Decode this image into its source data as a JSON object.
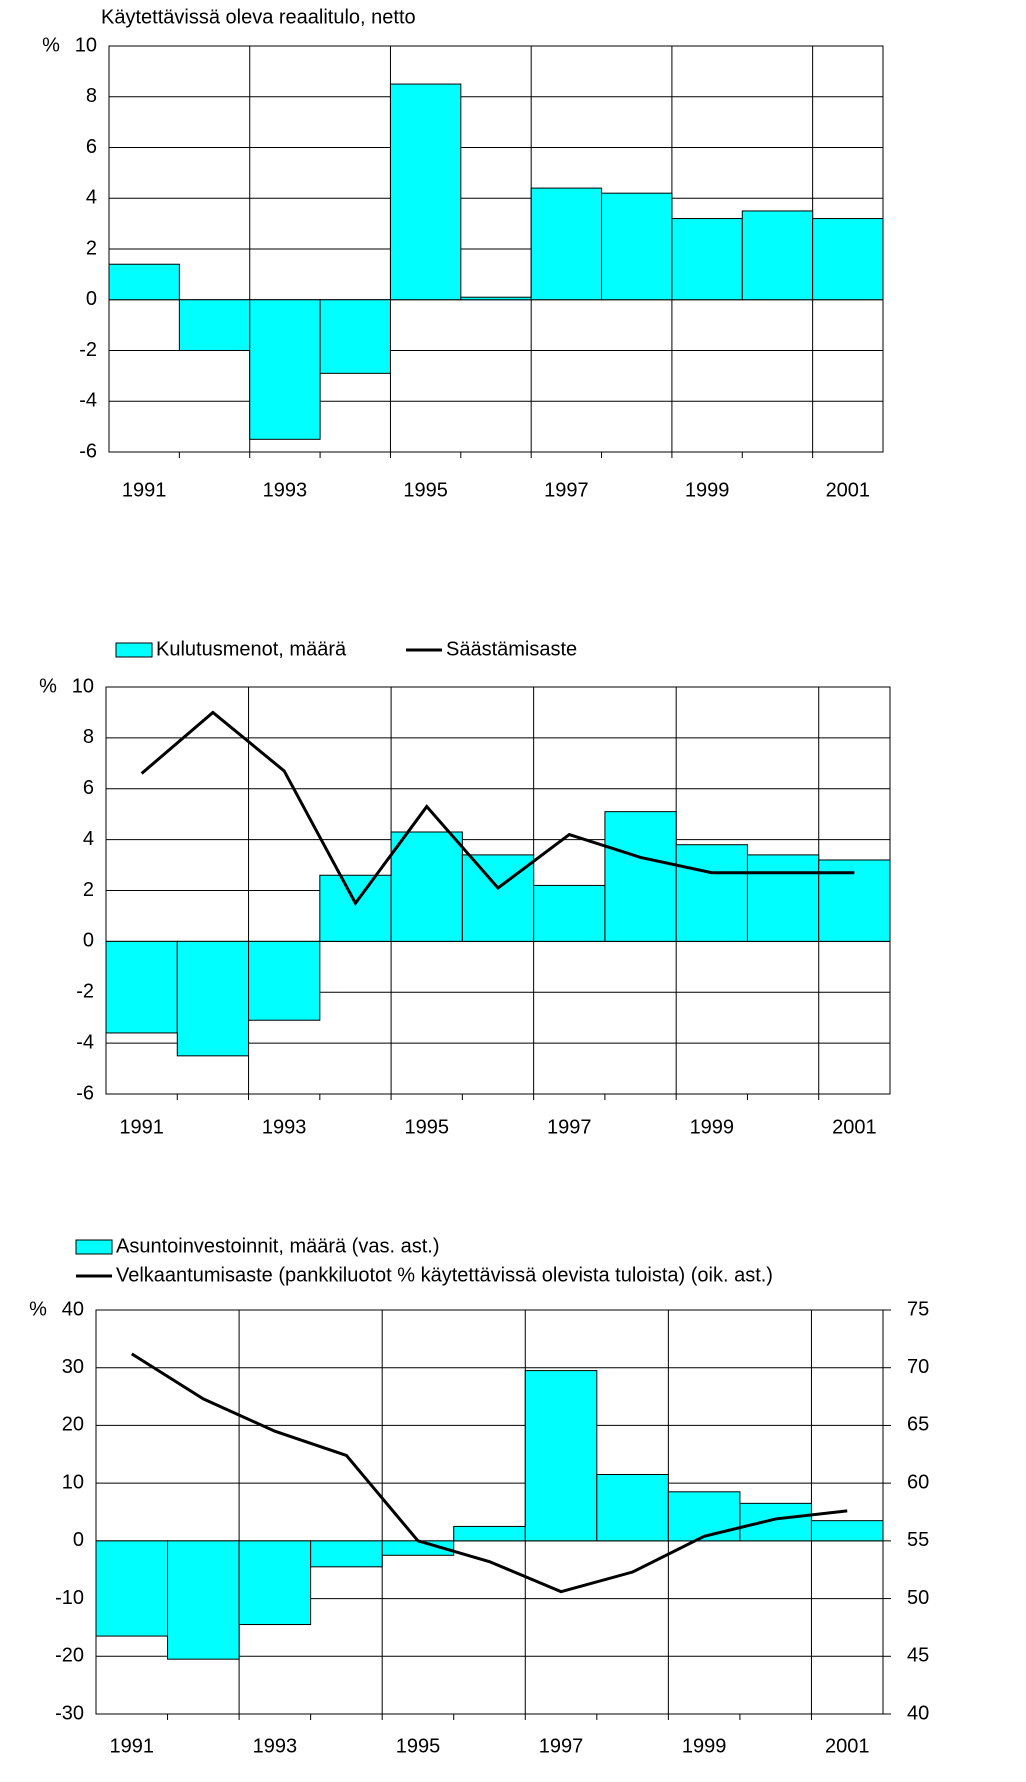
{
  "chart_data": [
    {
      "type": "bar",
      "title": "Käytettävissä oleva reaalitulo, netto",
      "unit": "%",
      "categories": [
        "1991",
        null,
        "1993",
        null,
        "1995",
        null,
        "1997",
        null,
        "1999",
        null,
        "2001"
      ],
      "values": [
        1.4,
        -2.0,
        -5.5,
        -2.9,
        8.5,
        0.1,
        4.4,
        4.2,
        3.2,
        3.5,
        3.2
      ],
      "color": "#00ffff",
      "ylim": [
        -6,
        10
      ],
      "yticks": [
        -6,
        -4,
        -2,
        0,
        2,
        4,
        6,
        8,
        10
      ],
      "grid": true
    },
    {
      "type": "bar",
      "unit": "%",
      "categories": [
        "1991",
        null,
        "1993",
        null,
        "1995",
        null,
        "1997",
        null,
        "1999",
        null,
        "2001"
      ],
      "series": [
        {
          "name": "Kulutusmenot, määrä",
          "type": "bar",
          "color": "#00ffff",
          "values": [
            -3.6,
            -4.5,
            -3.1,
            2.6,
            4.3,
            3.4,
            2.2,
            5.1,
            3.8,
            3.4,
            3.2
          ]
        },
        {
          "name": "Säästämisaste",
          "type": "line",
          "color": "#000000",
          "values": [
            6.6,
            9.0,
            6.7,
            1.5,
            5.3,
            2.1,
            4.2,
            3.3,
            2.7,
            2.7,
            2.7
          ]
        }
      ],
      "ylim": [
        -6,
        10
      ],
      "yticks": [
        -6,
        -4,
        -2,
        0,
        2,
        4,
        6,
        8,
        10
      ],
      "grid": true
    },
    {
      "type": "bar",
      "unit": "%",
      "categories": [
        "1991",
        null,
        "1993",
        null,
        "1995",
        null,
        "1997",
        null,
        "1999",
        null,
        "2001"
      ],
      "series": [
        {
          "name": "Asuntoinvestoinnit, määrä (vas. ast.)",
          "type": "bar",
          "color": "#00ffff",
          "values": [
            -16.5,
            -20.5,
            -14.5,
            -4.5,
            -2.5,
            2.5,
            29.5,
            11.5,
            8.5,
            6.5,
            3.5
          ]
        },
        {
          "name": "Velkaantumisaste (pankkiluotot % käytettävissä olevista tuloista) (oik. ast.)",
          "type": "line",
          "axis": "y2",
          "color": "#000000",
          "values": [
            71.2,
            67.3,
            64.5,
            62.4,
            55.0,
            53.2,
            50.6,
            52.3,
            55.4,
            56.9,
            57.6
          ]
        }
      ],
      "ylim": [
        -30,
        40
      ],
      "yticks": [
        -30,
        -20,
        -10,
        0,
        10,
        20,
        30,
        40
      ],
      "y2lim": [
        40,
        75
      ],
      "y2ticks": [
        40,
        45,
        50,
        55,
        60,
        65,
        70,
        75
      ],
      "grid": true
    }
  ]
}
